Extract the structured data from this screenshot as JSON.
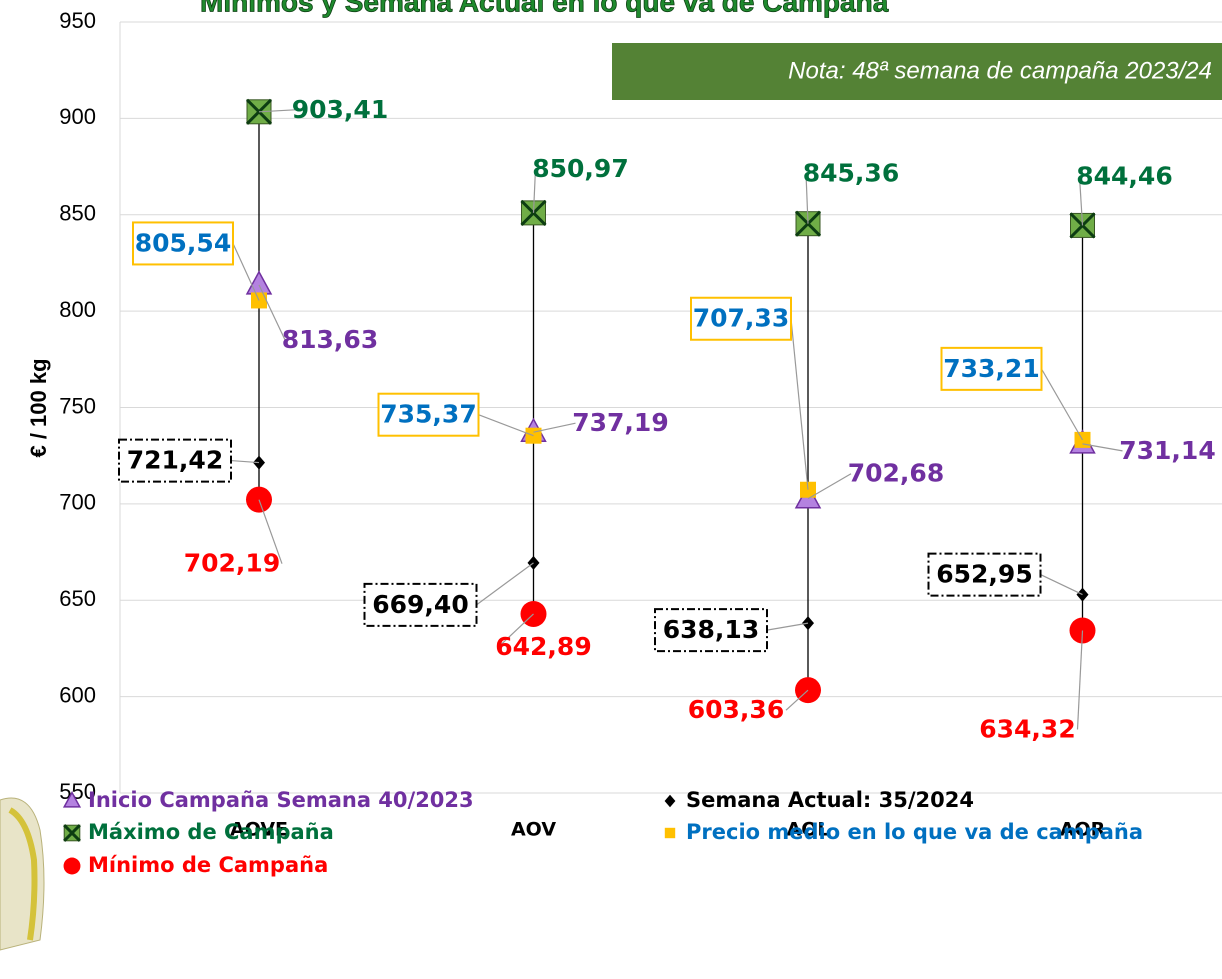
{
  "chart_data": {
    "type": "range-markers",
    "title": "Mínimos y Semana Actual en lo que va de Campaña",
    "annotation": "Nota: 48ª semana de campaña 2023/24",
    "y_label": "€ / 100 kg",
    "categories": [
      "AOVE",
      "AOV",
      "AOL",
      "AOR"
    ],
    "ylim": [
      550,
      950
    ],
    "yticks": [
      550,
      600,
      650,
      700,
      750,
      800,
      850,
      900,
      950
    ],
    "grid": true,
    "series": [
      {
        "name": "Inicio Campaña Semana 40/2023",
        "color": "#7030a0",
        "marker_fill": "#b482e0",
        "values": [
          813.63,
          737.19,
          702.68,
          731.14
        ],
        "value_labels": [
          "813,63",
          "737,19",
          "702,68",
          "731,14"
        ]
      },
      {
        "name": "Máximo de Campaña",
        "color": "#00703c",
        "marker_fill": "#70ad47",
        "values": [
          903.41,
          850.97,
          845.36,
          844.46
        ],
        "value_labels": [
          "903,41",
          "850,97",
          "845,36",
          "844,46"
        ]
      },
      {
        "name": "Mínimo de Campaña",
        "color": "#ff0000",
        "marker_fill": "#ff0000",
        "values": [
          702.19,
          642.89,
          603.36,
          634.32
        ],
        "value_labels": [
          "702,19",
          "642,89",
          "603,36",
          "634,32"
        ]
      },
      {
        "name": "Semana Actual: 35/2024",
        "color": "#000000",
        "marker_fill": "#000000",
        "values": [
          721.42,
          669.4,
          638.13,
          652.95
        ],
        "value_labels": [
          "721,42",
          "669,40",
          "638,13",
          "652,95"
        ]
      },
      {
        "name": "Precio medio en lo que va de campaña",
        "color": "#0070c0",
        "marker_fill": "#ffc000",
        "values": [
          805.54,
          735.37,
          707.33,
          733.21
        ],
        "value_labels": [
          "805,54",
          "735,37",
          "707,33",
          "733,21"
        ]
      }
    ]
  }
}
